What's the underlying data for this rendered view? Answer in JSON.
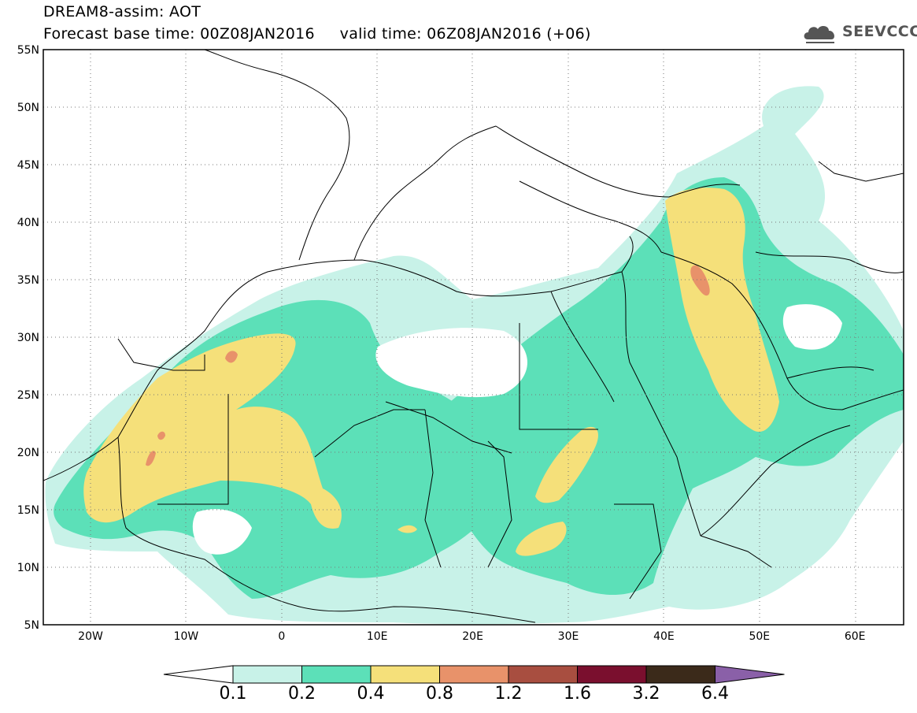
{
  "header": {
    "line1": "DREAM8-assim: AOT",
    "base_time": "Forecast base time: 00Z08JAN2016",
    "valid_time": "valid time: 06Z08JAN2016 (+06)"
  },
  "logo": {
    "text": "SEEVCCC",
    "icon": "cloud-icon"
  },
  "map": {
    "lon_range": [
      -25,
      65
    ],
    "lat_range": [
      5,
      55
    ],
    "lat_ticks": [
      "55N",
      "50N",
      "45N",
      "40N",
      "35N",
      "30N",
      "25N",
      "20N",
      "15N",
      "10N",
      "5N"
    ],
    "lon_ticks": [
      "20W",
      "10W",
      "0",
      "10E",
      "20E",
      "30E",
      "40E",
      "50E",
      "60E"
    ]
  },
  "colorbar": {
    "levels": [
      "0.1",
      "0.2",
      "0.4",
      "0.8",
      "1.2",
      "1.6",
      "3.2",
      "6.4"
    ],
    "colors": [
      "#c8f2e8",
      "#5ce0b8",
      "#f5e07a",
      "#e8926a",
      "#a84e40",
      "#7a0f2e",
      "#3b2a1a",
      "#8a60a8"
    ]
  }
}
